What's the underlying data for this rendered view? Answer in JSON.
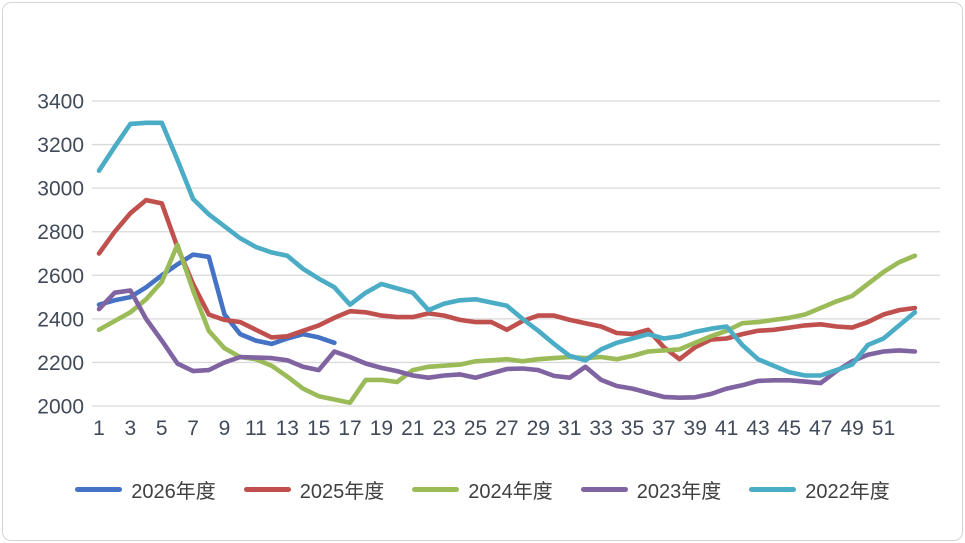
{
  "chart_meta": {
    "background": "#ffffff",
    "frame_border_color": "#d4d4d4",
    "gridline_color": "#d9d9d9",
    "axis_label_color": "#414a59",
    "legend_text_color": "#3f3f3f"
  },
  "chart_data": {
    "type": "line",
    "title": "",
    "xlabel": "",
    "ylabel": "",
    "x": "weeks 1-53",
    "x_tick_labels": [
      "1",
      "3",
      "5",
      "7",
      "9",
      "11",
      "13",
      "15",
      "17",
      "19",
      "21",
      "23",
      "25",
      "27",
      "29",
      "31",
      "33",
      "35",
      "37",
      "39",
      "41",
      "43",
      "45",
      "47",
      "49",
      "51"
    ],
    "ylim": [
      2000,
      3400
    ],
    "y_ticks": [
      2000,
      2200,
      2400,
      2600,
      2800,
      3000,
      3200,
      3400
    ],
    "grid": "horizontal",
    "legend_position": "bottom",
    "series": [
      {
        "name": "2026年度",
        "color": "#4472C4",
        "values": [
          2465,
          2485,
          2500,
          2545,
          2600,
          2650,
          2695,
          2685,
          2420,
          2330,
          2300,
          2285,
          2310,
          2330,
          2315,
          2290
        ]
      },
      {
        "name": "2025年度",
        "color": "#C0504D",
        "values": [
          2700,
          2800,
          2885,
          2945,
          2930,
          2730,
          2560,
          2420,
          2395,
          2385,
          2350,
          2315,
          2320,
          2345,
          2370,
          2405,
          2435,
          2430,
          2415,
          2408,
          2408,
          2425,
          2415,
          2395,
          2385,
          2385,
          2350,
          2390,
          2415,
          2415,
          2395,
          2380,
          2365,
          2335,
          2330,
          2350,
          2270,
          2215,
          2270,
          2305,
          2310,
          2330,
          2345,
          2350,
          2360,
          2370,
          2375,
          2365,
          2360,
          2385,
          2420,
          2440,
          2450
        ]
      },
      {
        "name": "2024年度",
        "color": "#9BBB59",
        "values": [
          2350,
          2390,
          2430,
          2490,
          2570,
          2740,
          2530,
          2345,
          2265,
          2225,
          2215,
          2185,
          2135,
          2080,
          2045,
          2030,
          2015,
          2120,
          2120,
          2110,
          2165,
          2180,
          2185,
          2190,
          2205,
          2210,
          2215,
          2205,
          2215,
          2220,
          2225,
          2220,
          2225,
          2215,
          2230,
          2250,
          2255,
          2260,
          2290,
          2320,
          2345,
          2380,
          2385,
          2395,
          2405,
          2420,
          2450,
          2480,
          2505,
          2560,
          2615,
          2660,
          2690
        ]
      },
      {
        "name": "2023年度",
        "color": "#8064A2",
        "values": [
          2445,
          2520,
          2530,
          2400,
          2300,
          2195,
          2160,
          2165,
          2200,
          2225,
          2222,
          2220,
          2210,
          2180,
          2165,
          2250,
          2225,
          2195,
          2175,
          2160,
          2140,
          2130,
          2140,
          2145,
          2130,
          2150,
          2170,
          2172,
          2165,
          2138,
          2130,
          2180,
          2120,
          2092,
          2080,
          2060,
          2042,
          2038,
          2040,
          2055,
          2080,
          2095,
          2115,
          2118,
          2118,
          2112,
          2105,
          2160,
          2205,
          2235,
          2250,
          2255,
          2250
        ]
      },
      {
        "name": "2022年度",
        "color": "#4BACC6",
        "values": [
          3080,
          3190,
          3295,
          3300,
          3300,
          3130,
          2950,
          2880,
          2825,
          2770,
          2730,
          2705,
          2690,
          2630,
          2585,
          2545,
          2465,
          2520,
          2560,
          2540,
          2520,
          2440,
          2470,
          2485,
          2490,
          2475,
          2460,
          2400,
          2345,
          2285,
          2230,
          2210,
          2260,
          2290,
          2310,
          2330,
          2310,
          2320,
          2340,
          2355,
          2365,
          2280,
          2215,
          2185,
          2155,
          2140,
          2140,
          2165,
          2190,
          2280,
          2310,
          2370,
          2430
        ]
      }
    ]
  }
}
